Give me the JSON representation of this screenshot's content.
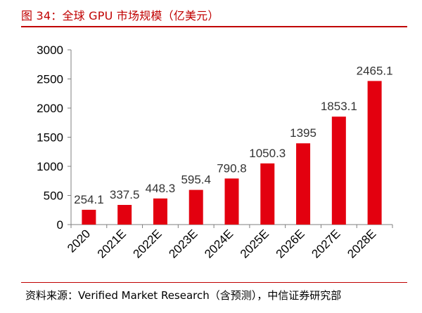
{
  "header": {
    "title": "图 34：全球 GPU 市场规模（亿美元）"
  },
  "footer": {
    "source": "资料来源：Verified Market Research（含预测），中信证券研究部"
  },
  "colors": {
    "accent": "#c00000",
    "bar": "#e3000f",
    "axis": "#7f7f7f",
    "text": "#000000"
  },
  "chart_data": {
    "type": "bar",
    "title": "图 34：全球 GPU 市场规模（亿美元）",
    "xlabel": "",
    "ylabel": "",
    "categories": [
      "2020",
      "2021E",
      "2022E",
      "2023E",
      "2024E",
      "2025E",
      "2026E",
      "2027E",
      "2028E"
    ],
    "values": [
      254.1,
      337.5,
      448.3,
      595.4,
      790.8,
      1050.3,
      1395,
      1853.1,
      2465.1
    ],
    "value_labels": [
      "254.1",
      "337.5",
      "448.3",
      "595.4",
      "790.8",
      "1050.3",
      "1395",
      "1853.1",
      "2465.1"
    ],
    "ylim": [
      0,
      3000
    ],
    "yticks": [
      0,
      500,
      1000,
      1500,
      2000,
      2500,
      3000
    ],
    "grid": false,
    "legend": "none"
  }
}
